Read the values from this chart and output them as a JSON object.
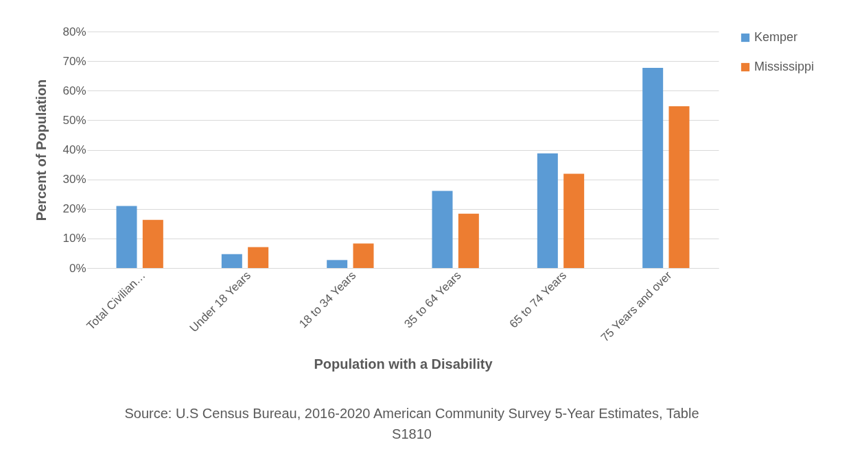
{
  "chart_data": {
    "type": "bar",
    "xlabel": "Population with a Disability",
    "ylabel": "Percent of Population",
    "categories": [
      "Total Civilian…",
      "Under 18 Years",
      "18 to 34 Years",
      "35 to 64 Years",
      "65 to 74 Years",
      "75 Years and over"
    ],
    "series": [
      {
        "name": "Kemper",
        "color": "#5b9bd5",
        "values": [
          21,
          4.7,
          2.7,
          26.1,
          38.8,
          67.7
        ]
      },
      {
        "name": "Mississippi",
        "color": "#ed7d31",
        "values": [
          16.3,
          7.1,
          8.3,
          18.4,
          31.9,
          54.7
        ]
      }
    ],
    "ylim": [
      0,
      80
    ],
    "yticks": [
      {
        "value": 0,
        "label": "0%"
      },
      {
        "value": 10,
        "label": "10%"
      },
      {
        "value": 20,
        "label": "20%"
      },
      {
        "value": 30,
        "label": "30%"
      },
      {
        "value": 40,
        "label": "40%"
      },
      {
        "value": 50,
        "label": "50%"
      },
      {
        "value": 60,
        "label": "60%"
      },
      {
        "value": 70,
        "label": "70%"
      },
      {
        "value": 80,
        "label": "80%"
      }
    ],
    "grid": "y",
    "legend": "right",
    "annotations": [
      "Source: U.S Census Bureau, 2016-2020 American Community Survey 5-Year Estimates, Table S1810"
    ]
  }
}
